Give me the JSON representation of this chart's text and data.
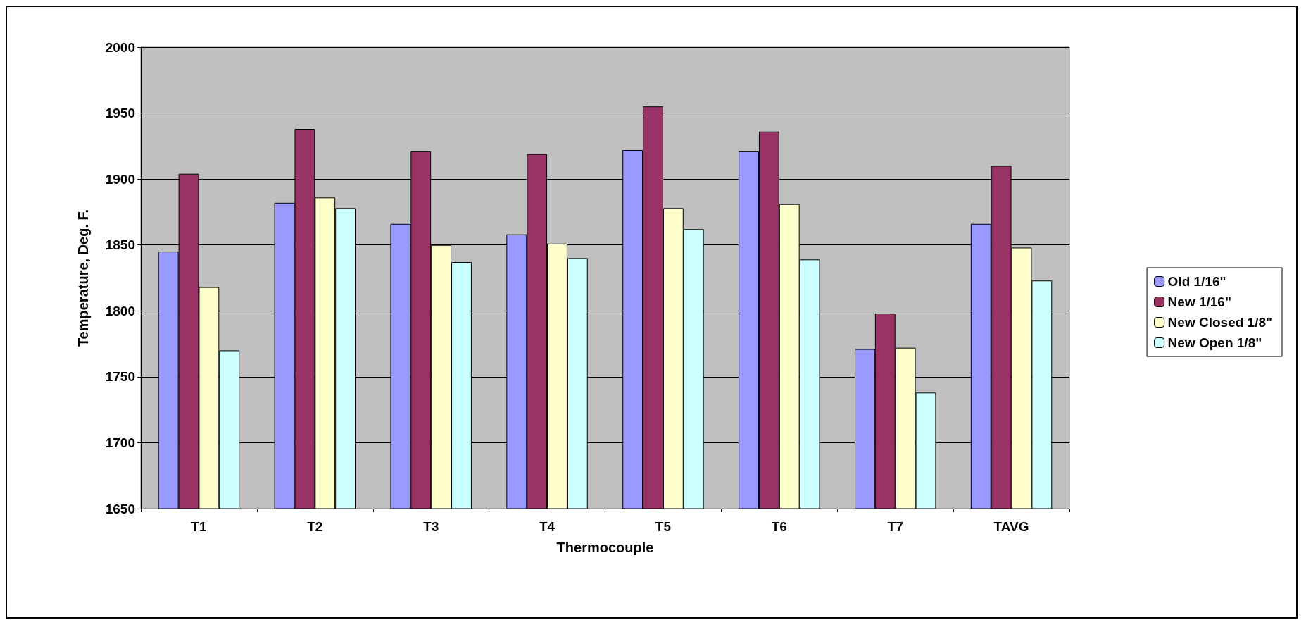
{
  "chart_data": {
    "type": "bar",
    "xlabel": "Thermocouple",
    "ylabel": "Temperature, Deg. F.",
    "categories": [
      "T1",
      "T2",
      "T3",
      "T4",
      "T5",
      "T6",
      "T7",
      "TAVG"
    ],
    "series": [
      {
        "name": "Old 1/16\"",
        "color": "#9999ff",
        "values": [
          1845,
          1882,
          1866,
          1858,
          1922,
          1921,
          1771,
          1866
        ]
      },
      {
        "name": "New 1/16\"",
        "color": "#993366",
        "values": [
          1904,
          1938,
          1921,
          1919,
          1955,
          1936,
          1798,
          1910
        ]
      },
      {
        "name": "New Closed 1/8\"",
        "color": "#ffffcc",
        "values": [
          1818,
          1886,
          1850,
          1851,
          1878,
          1881,
          1772,
          1848
        ]
      },
      {
        "name": "New Open 1/8\"",
        "color": "#ccffff",
        "values": [
          1770,
          1878,
          1837,
          1840,
          1862,
          1839,
          1738,
          1823
        ]
      }
    ],
    "ylim": [
      1650,
      2000
    ],
    "yticks": [
      1650,
      1700,
      1750,
      1800,
      1850,
      1900,
      1950,
      2000
    ],
    "grid": "y",
    "legend": "right"
  }
}
